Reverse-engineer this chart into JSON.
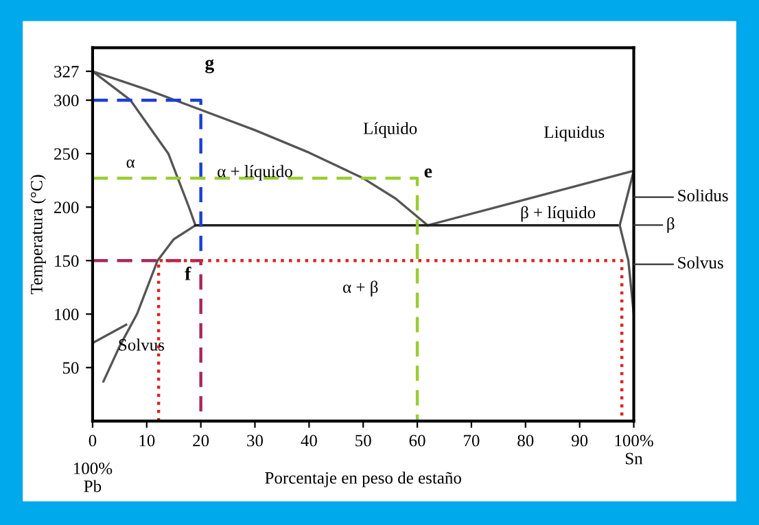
{
  "chart_data": {
    "type": "line",
    "xlabel": "Porcentaje en peso de estaño",
    "ylabel": "Temperatura (°C)",
    "xlim": [
      0,
      100
    ],
    "ylim": [
      0,
      349
    ],
    "xticks": [
      0,
      10,
      20,
      30,
      40,
      50,
      60,
      70,
      80,
      90,
      {
        "value": 100,
        "label": "100%\nSn"
      }
    ],
    "yticks": [
      50,
      100,
      150,
      200,
      250,
      300,
      327
    ],
    "grid": false,
    "legend": false,
    "marker": "none",
    "series": [
      {
        "x": [
          0,
          10,
          20,
          30,
          40,
          50,
          56,
          61.9
        ],
        "values": [
          327,
          310,
          291,
          272,
          251,
          227,
          208,
          183
        ],
        "color": "#555555"
      },
      {
        "x": [
          61.9,
          100
        ],
        "values": [
          183,
          234
        ],
        "color": "#555555"
      },
      {
        "x": [
          0,
          7,
          14,
          17.8,
          19
        ],
        "values": [
          327,
          300,
          250,
          200,
          183
        ],
        "color": "#555555"
      },
      {
        "x": [
          2,
          5,
          8.2,
          12,
          15,
          19
        ],
        "values": [
          37,
          70,
          100,
          150,
          170,
          183
        ],
        "color": "#555555"
      },
      {
        "x": [
          0,
          6.2
        ],
        "values": [
          73,
          90
        ],
        "color": "#555555"
      },
      {
        "x": [
          19,
          97.4
        ],
        "values": [
          183,
          183
        ],
        "color": "#222222"
      },
      {
        "x": [
          100,
          97.4
        ],
        "values": [
          234,
          183
        ],
        "color": "#555555"
      },
      {
        "x": [
          97.4,
          99,
          100
        ],
        "values": [
          183,
          150,
          100
        ],
        "color": "#555555"
      },
      {
        "x": [
          0,
          20,
          20
        ],
        "values": [
          300,
          300,
          156
        ],
        "color": "#1a3fd6",
        "line_style": "dashed"
      },
      {
        "x": [
          0,
          20,
          20
        ],
        "values": [
          150,
          150,
          0
        ],
        "color": "#a8285a",
        "line_style": "dashed"
      },
      {
        "x": [
          0,
          60,
          60
        ],
        "values": [
          227,
          227,
          0
        ],
        "color": "#9acd32",
        "line_style": "dashed"
      },
      {
        "x": [
          12.2,
          12.2,
          97.8,
          97.8
        ],
        "values": [
          0,
          150,
          150,
          0
        ],
        "color": "#e02020",
        "line_style": "dotted"
      }
    ],
    "annotations": [
      "g",
      "f",
      "e",
      "Líquido",
      "α",
      "α + líquido",
      "Liquidus",
      "β + líquido",
      "α + β",
      "Solvus",
      "Solidus",
      "β",
      "Solvus",
      "100%\nPb"
    ]
  }
}
